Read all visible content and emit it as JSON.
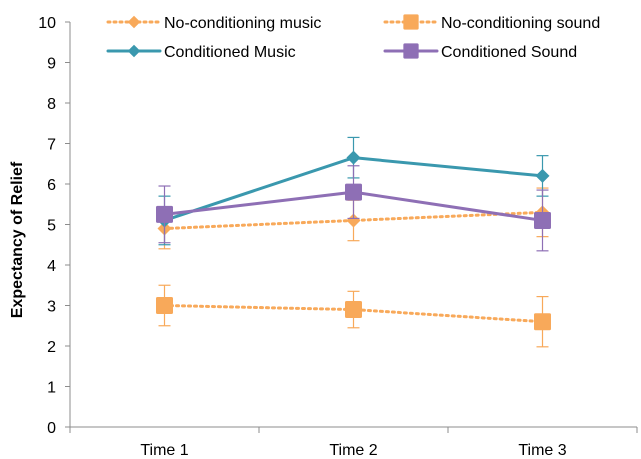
{
  "chart_data": {
    "type": "line",
    "categories": [
      "Time 1",
      "Time 2",
      "Time 3"
    ],
    "ylabel": "Expectancy of Relief",
    "xlabel": "",
    "ylim": [
      0,
      10
    ],
    "yticks": [
      "0",
      "1",
      "2",
      "3",
      "4",
      "5",
      "6",
      "7",
      "8",
      "9",
      "10"
    ],
    "grid": false,
    "legend_position": "top",
    "series": [
      {
        "name": "No-conditioning music",
        "values": [
          4.9,
          5.1,
          5.3
        ],
        "err": [
          0.5,
          0.5,
          0.6
        ],
        "color": "#F8A95A",
        "line_style": "dotted",
        "marker": "diamond"
      },
      {
        "name": "No-conditioning sound",
        "values": [
          3.0,
          2.9,
          2.6
        ],
        "err": [
          0.5,
          0.45,
          0.62
        ],
        "color": "#F8A95A",
        "line_style": "dotted",
        "marker": "square"
      },
      {
        "name": "Conditioned Music",
        "values": [
          5.1,
          6.65,
          6.2
        ],
        "err": [
          0.6,
          0.5,
          0.5
        ],
        "color": "#3A98AE",
        "line_style": "solid",
        "marker": "diamond"
      },
      {
        "name": "Conditioned Sound",
        "values": [
          5.25,
          5.8,
          5.1
        ],
        "err": [
          0.7,
          0.65,
          0.75
        ],
        "color": "#8E6FB5",
        "line_style": "solid",
        "marker": "square"
      }
    ]
  }
}
